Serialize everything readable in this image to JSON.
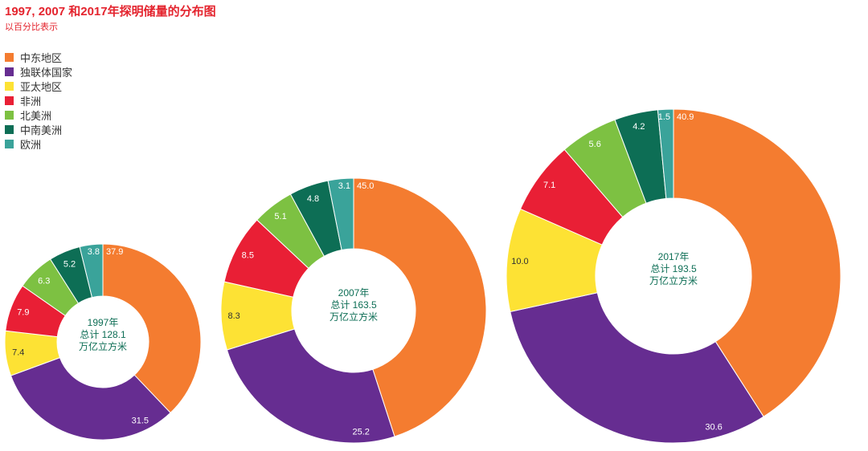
{
  "title": "1997, 2007 和2017年探明储量的分布图",
  "subtitle": "以百分比表示",
  "chart_data": {
    "type": "pie",
    "variant": "donut",
    "legend_position": "top-left",
    "categories": [
      "中东地区",
      "独联体国家",
      "亚太地区",
      "非洲",
      "北美洲",
      "中南美洲",
      "欧洲"
    ],
    "colors": [
      "#f47c30",
      "#662d91",
      "#fde234",
      "#e91f35",
      "#7dc142",
      "#0d6e55",
      "#3aa39a"
    ],
    "charts": [
      {
        "center_label": [
          "1997年",
          "总计 128.1",
          "万亿立方米"
        ],
        "total": 128.1,
        "values": [
          37.9,
          31.5,
          7.4,
          7.9,
          6.3,
          5.2,
          3.8
        ]
      },
      {
        "center_label": [
          "2007年",
          "总计 163.5",
          "万亿立方米"
        ],
        "total": 163.5,
        "values": [
          45.0,
          25.2,
          8.3,
          8.5,
          5.1,
          4.8,
          3.1
        ]
      },
      {
        "center_label": [
          "2017年",
          "总计 193.5",
          "万亿立方米"
        ],
        "total": 193.5,
        "values": [
          40.9,
          30.6,
          10.0,
          7.1,
          5.6,
          4.2,
          1.5
        ]
      }
    ]
  }
}
